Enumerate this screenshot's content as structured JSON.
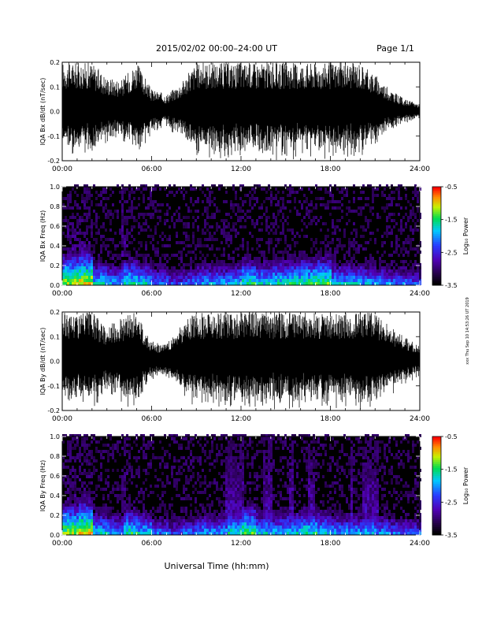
{
  "header": {
    "title": "2015/02/02   00:00–24:00 UT",
    "page": "Page 1/1"
  },
  "side_stamp": "xxx Thu Sep 10 14:53:26 UT 2019",
  "footer": {
    "xlabel": "Universal Time (hh:mm)"
  },
  "colors": {
    "trace": "#000000",
    "background": "#ffffff"
  },
  "chart_data": [
    {
      "type": "line",
      "ylabel": "IQA Bx dB/dt (nT/sec)",
      "xlim": [
        0,
        24
      ],
      "ylim": [
        -0.2,
        0.2
      ],
      "x_ticks": [
        "00:00",
        "06:00",
        "12:00",
        "18:00",
        "24:00"
      ],
      "y_ticks": [
        "-0.2",
        "-0.1",
        "0.0",
        "0.1",
        "0.2"
      ],
      "envelope": {
        "x_hours": [
          0,
          1,
          2,
          3,
          4,
          5,
          6,
          7,
          8,
          9,
          10,
          11,
          12,
          13,
          14,
          15,
          16,
          17,
          18,
          19,
          20,
          21,
          22,
          23,
          24
        ],
        "amplitude": [
          0.2,
          0.2,
          0.2,
          0.14,
          0.13,
          0.2,
          0.09,
          0.07,
          0.12,
          0.2,
          0.2,
          0.2,
          0.2,
          0.2,
          0.2,
          0.2,
          0.2,
          0.2,
          0.2,
          0.2,
          0.2,
          0.15,
          0.09,
          0.05,
          0.03
        ]
      }
    },
    {
      "type": "heatmap",
      "ylabel": "IQA Bx Freq (Hz)",
      "xlim": [
        0,
        24
      ],
      "ylim": [
        0.0,
        1.0
      ],
      "x_ticks": [
        "00:00",
        "06:00",
        "12:00",
        "18:00",
        "24:00"
      ],
      "y_ticks": [
        "0.0",
        "0.2",
        "0.4",
        "0.6",
        "0.8",
        "1.0"
      ],
      "colorbar": {
        "label": "Log₁₀ Power",
        "range": [
          -3.5,
          -0.5
        ],
        "ticks": [
          "-0.5",
          "-1.5",
          "-2.5",
          "-3.5"
        ]
      },
      "low_freq_power_by_hour": [
        -1.2,
        -1.0,
        -1.8,
        -2.0,
        -1.6,
        -1.8,
        -2.2,
        -2.4,
        -2.2,
        -2.0,
        -2.0,
        -1.9,
        -1.6,
        -1.8,
        -1.7,
        -1.6,
        -1.5,
        -1.4,
        -1.9,
        -1.9,
        -2.0,
        -2.1,
        -2.2,
        -2.3
      ]
    },
    {
      "type": "line",
      "ylabel": "IQA By dB/dt (nT/sec)",
      "xlim": [
        0,
        24
      ],
      "ylim": [
        -0.2,
        0.2
      ],
      "x_ticks": [
        "00:00",
        "06:00",
        "12:00",
        "18:00",
        "24:00"
      ],
      "y_ticks": [
        "-0.2",
        "-0.1",
        "0.0",
        "0.1",
        "0.2"
      ],
      "envelope": {
        "x_hours": [
          0,
          1,
          2,
          3,
          4,
          5,
          6,
          7,
          8,
          9,
          10,
          11,
          12,
          13,
          14,
          15,
          16,
          17,
          18,
          19,
          20,
          21,
          22,
          23,
          24
        ],
        "amplitude": [
          0.2,
          0.2,
          0.2,
          0.14,
          0.18,
          0.2,
          0.08,
          0.07,
          0.15,
          0.2,
          0.2,
          0.2,
          0.2,
          0.2,
          0.2,
          0.2,
          0.2,
          0.2,
          0.2,
          0.2,
          0.2,
          0.2,
          0.14,
          0.1,
          0.06
        ]
      }
    },
    {
      "type": "heatmap",
      "ylabel": "IQA By Freq (Hz)",
      "xlim": [
        0,
        24
      ],
      "ylim": [
        0.0,
        1.0
      ],
      "x_ticks": [
        "00:00",
        "06:00",
        "12:00",
        "18:00",
        "24:00"
      ],
      "y_ticks": [
        "0.0",
        "0.2",
        "0.4",
        "0.6",
        "0.8",
        "1.0"
      ],
      "colorbar": {
        "label": "Log₁₀ Power",
        "range": [
          -3.5,
          -0.5
        ],
        "ticks": [
          "-0.5",
          "-1.5",
          "-2.5",
          "-3.5"
        ]
      },
      "broadband_bursts_hours": [
        [
          10.8,
          12.2
        ],
        [
          13.4,
          14.0
        ],
        [
          15.2,
          15.5
        ],
        [
          16.4,
          16.9
        ],
        [
          19.2,
          19.5
        ],
        [
          20.1,
          21.1
        ]
      ],
      "low_freq_power_by_hour": [
        -1.2,
        -1.0,
        -1.8,
        -2.0,
        -1.6,
        -1.8,
        -2.2,
        -2.4,
        -2.2,
        -2.0,
        -2.0,
        -1.7,
        -1.4,
        -1.8,
        -1.9,
        -1.8,
        -1.6,
        -1.8,
        -2.0,
        -2.0,
        -1.9,
        -2.1,
        -2.2,
        -2.3
      ]
    }
  ]
}
